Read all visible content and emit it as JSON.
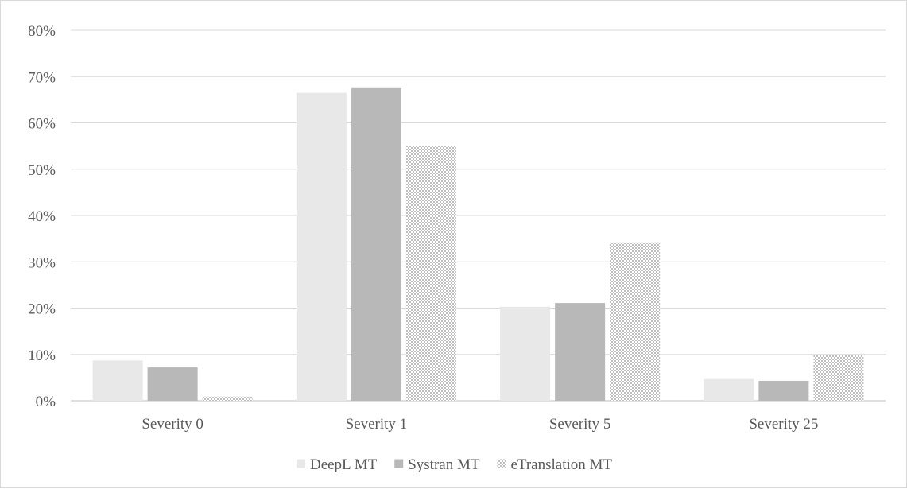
{
  "chart_data": {
    "type": "bar",
    "title": "",
    "xlabel": "",
    "ylabel": "",
    "categories": [
      "Severity 0",
      "Severity 1",
      "Severity 5",
      "Severity 25"
    ],
    "series": [
      {
        "name": "DeepL MT",
        "values": [
          8.7,
          66.5,
          20.3,
          4.7
        ],
        "color": "#e8e8e8",
        "pattern": "solid"
      },
      {
        "name": "Systran MT",
        "values": [
          7.2,
          67.5,
          21.1,
          4.3
        ],
        "color": "#b8b8b8",
        "pattern": "solid"
      },
      {
        "name": "eTranslation MT",
        "values": [
          0.9,
          55.0,
          34.2,
          9.9
        ],
        "color": "#cfcfcf",
        "pattern": "dotted"
      }
    ],
    "ylim": [
      0,
      80
    ],
    "y_ticks": [
      0,
      10,
      20,
      30,
      40,
      50,
      60,
      70,
      80
    ],
    "y_tick_format": "percent",
    "grid": true,
    "legend_position": "bottom"
  }
}
